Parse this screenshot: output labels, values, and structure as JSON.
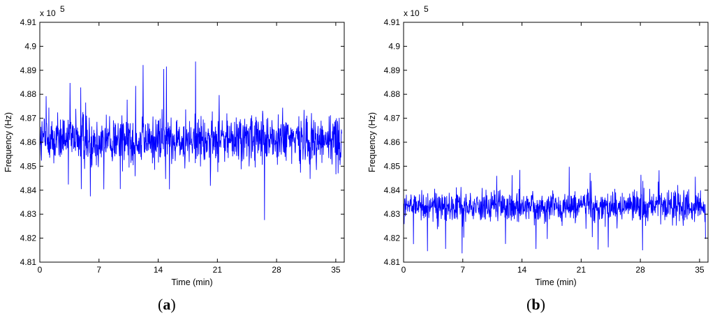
{
  "chart_data": [
    {
      "type": "line",
      "panel_label": "a",
      "xlabel": "Time (min)",
      "ylabel": "Frequency (Hz)",
      "y_multiplier_label": "x 10",
      "y_multiplier_exponent": "5",
      "xlim": [
        0,
        36
      ],
      "ylim": [
        4.81,
        4.91
      ],
      "x_ticks": [
        "0",
        "7",
        "14",
        "21",
        "28",
        "35"
      ],
      "y_ticks": [
        "4.81",
        "4.82",
        "4.83",
        "4.84",
        "4.85",
        "4.86",
        "4.87",
        "4.88",
        "4.89",
        "4.9",
        "4.91"
      ],
      "series": [
        {
          "color": "#0000ff",
          "mean": 4.861,
          "spread": 0.0055,
          "x_start": 0,
          "x_end": 35.7
        }
      ],
      "grid": false
    },
    {
      "type": "line",
      "panel_label": "b",
      "xlabel": "Time (min)",
      "ylabel": "Frequency (Hz)",
      "y_multiplier_label": "x 10",
      "y_multiplier_exponent": "5",
      "xlim": [
        0,
        36
      ],
      "ylim": [
        4.81,
        4.91
      ],
      "x_ticks": [
        "0",
        "7",
        "14",
        "21",
        "28",
        "35"
      ],
      "y_ticks": [
        "4.81",
        "4.82",
        "4.83",
        "4.84",
        "4.85",
        "4.86",
        "4.87",
        "4.88",
        "4.89",
        "4.9",
        "4.91"
      ],
      "series": [
        {
          "color": "#0000ff",
          "mean": 4.833,
          "spread": 0.0032,
          "x_start": 0,
          "x_end": 35.7
        }
      ],
      "grid": false
    }
  ]
}
